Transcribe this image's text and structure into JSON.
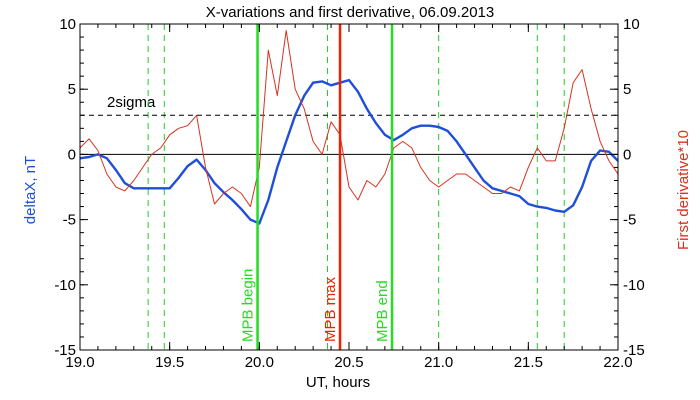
{
  "chart_data": {
    "type": "line",
    "title": "X-variations and first derivative, 06.09.2013",
    "xlabel": "UT, hours",
    "ylabel_left": "deltaX, nT",
    "ylabel_right": "First derivative*10",
    "xlim": [
      19.0,
      22.0
    ],
    "ylim_left": [
      -15,
      10
    ],
    "ylim_right": [
      -15,
      10
    ],
    "x_ticks": [
      19.0,
      19.5,
      20.0,
      20.5,
      21.0,
      21.5,
      22.0
    ],
    "x_tick_labels": [
      "19.0",
      "19.5",
      "20.0",
      "20.5",
      "21.0",
      "21.5",
      "22.0"
    ],
    "y_ticks": [
      -15,
      -10,
      -5,
      0,
      5,
      10
    ],
    "y_tick_labels": [
      "-15",
      "-10",
      "-5",
      "0",
      "5",
      "10"
    ],
    "colors": {
      "deltaX": "#1f4fd8",
      "derivative": "#d8321f",
      "mpb_edges": "#22dd22",
      "mpb_max": "#ee2200",
      "dashed_green": "#22cc22",
      "zero_line": "#000000",
      "sigma_line": "#000000"
    },
    "sigma_label": "2sigma",
    "sigma_level": 3.0,
    "zero_level": 0,
    "vertical_markers": [
      {
        "x": 19.99,
        "label": "MPB begin",
        "color": "#22dd22"
      },
      {
        "x": 20.45,
        "label": "MPB max",
        "color": "#ee2200"
      },
      {
        "x": 20.74,
        "label": "MPB end",
        "color": "#22dd22"
      }
    ],
    "dashed_verticals": [
      19.38,
      19.47,
      20.38,
      21.0,
      21.55,
      21.7
    ],
    "series": [
      {
        "name": "deltaX",
        "x": [
          19.0,
          19.05,
          19.1,
          19.15,
          19.2,
          19.25,
          19.3,
          19.35,
          19.4,
          19.45,
          19.5,
          19.55,
          19.6,
          19.65,
          19.7,
          19.75,
          19.8,
          19.85,
          19.9,
          19.95,
          20.0,
          20.05,
          20.1,
          20.15,
          20.2,
          20.25,
          20.3,
          20.35,
          20.4,
          20.45,
          20.5,
          20.55,
          20.6,
          20.65,
          20.7,
          20.75,
          20.8,
          20.85,
          20.9,
          20.95,
          21.0,
          21.05,
          21.1,
          21.15,
          21.2,
          21.25,
          21.3,
          21.35,
          21.4,
          21.45,
          21.5,
          21.55,
          21.6,
          21.65,
          21.7,
          21.75,
          21.8,
          21.85,
          21.9,
          21.95,
          22.0
        ],
        "values": [
          -0.3,
          -0.2,
          0.0,
          -0.3,
          -1.2,
          -2.2,
          -2.6,
          -2.6,
          -2.6,
          -2.6,
          -2.6,
          -1.8,
          -0.9,
          -0.4,
          -1.2,
          -2.2,
          -2.9,
          -3.5,
          -4.2,
          -5.0,
          -5.3,
          -3.5,
          -1.0,
          1.0,
          3.0,
          4.5,
          5.5,
          5.6,
          5.3,
          5.5,
          5.7,
          4.8,
          3.5,
          2.4,
          1.5,
          1.1,
          1.5,
          2.0,
          2.2,
          2.2,
          2.1,
          1.8,
          1.0,
          0.0,
          -1.0,
          -2.0,
          -2.6,
          -2.8,
          -3.0,
          -3.2,
          -3.8,
          -4.0,
          -4.1,
          -4.3,
          -4.4,
          -3.9,
          -2.5,
          -0.5,
          0.3,
          0.2,
          -0.5
        ]
      },
      {
        "name": "First derivative*10",
        "x": [
          19.0,
          19.05,
          19.1,
          19.15,
          19.2,
          19.25,
          19.3,
          19.35,
          19.4,
          19.45,
          19.5,
          19.55,
          19.6,
          19.65,
          19.7,
          19.75,
          19.8,
          19.85,
          19.9,
          19.95,
          20.0,
          20.05,
          20.1,
          20.15,
          20.2,
          20.25,
          20.3,
          20.35,
          20.4,
          20.45,
          20.5,
          20.55,
          20.6,
          20.65,
          20.7,
          20.75,
          20.8,
          20.85,
          20.9,
          20.95,
          21.0,
          21.05,
          21.1,
          21.15,
          21.2,
          21.25,
          21.3,
          21.35,
          21.4,
          21.45,
          21.5,
          21.55,
          21.6,
          21.65,
          21.7,
          21.75,
          21.8,
          21.85,
          21.9,
          21.95,
          22.0
        ],
        "values": [
          0.5,
          1.2,
          0.3,
          -1.5,
          -2.5,
          -2.8,
          -2.0,
          -1.0,
          0.0,
          0.5,
          1.5,
          2.0,
          2.2,
          3.0,
          -1.0,
          -3.8,
          -3.0,
          -2.5,
          -3.0,
          -4.0,
          -1.0,
          8.0,
          4.5,
          9.5,
          5.0,
          3.5,
          1.0,
          0.0,
          2.5,
          1.5,
          -2.5,
          -3.5,
          -2.0,
          -2.5,
          -1.5,
          0.5,
          1.0,
          0.5,
          -1.0,
          -2.0,
          -2.5,
          -2.0,
          -1.5,
          -1.5,
          -2.0,
          -2.5,
          -3.0,
          -3.0,
          -2.5,
          -2.8,
          -1.0,
          0.5,
          -0.5,
          -0.5,
          2.0,
          5.5,
          6.5,
          3.5,
          1.0,
          -0.5,
          -1.5
        ]
      }
    ]
  }
}
